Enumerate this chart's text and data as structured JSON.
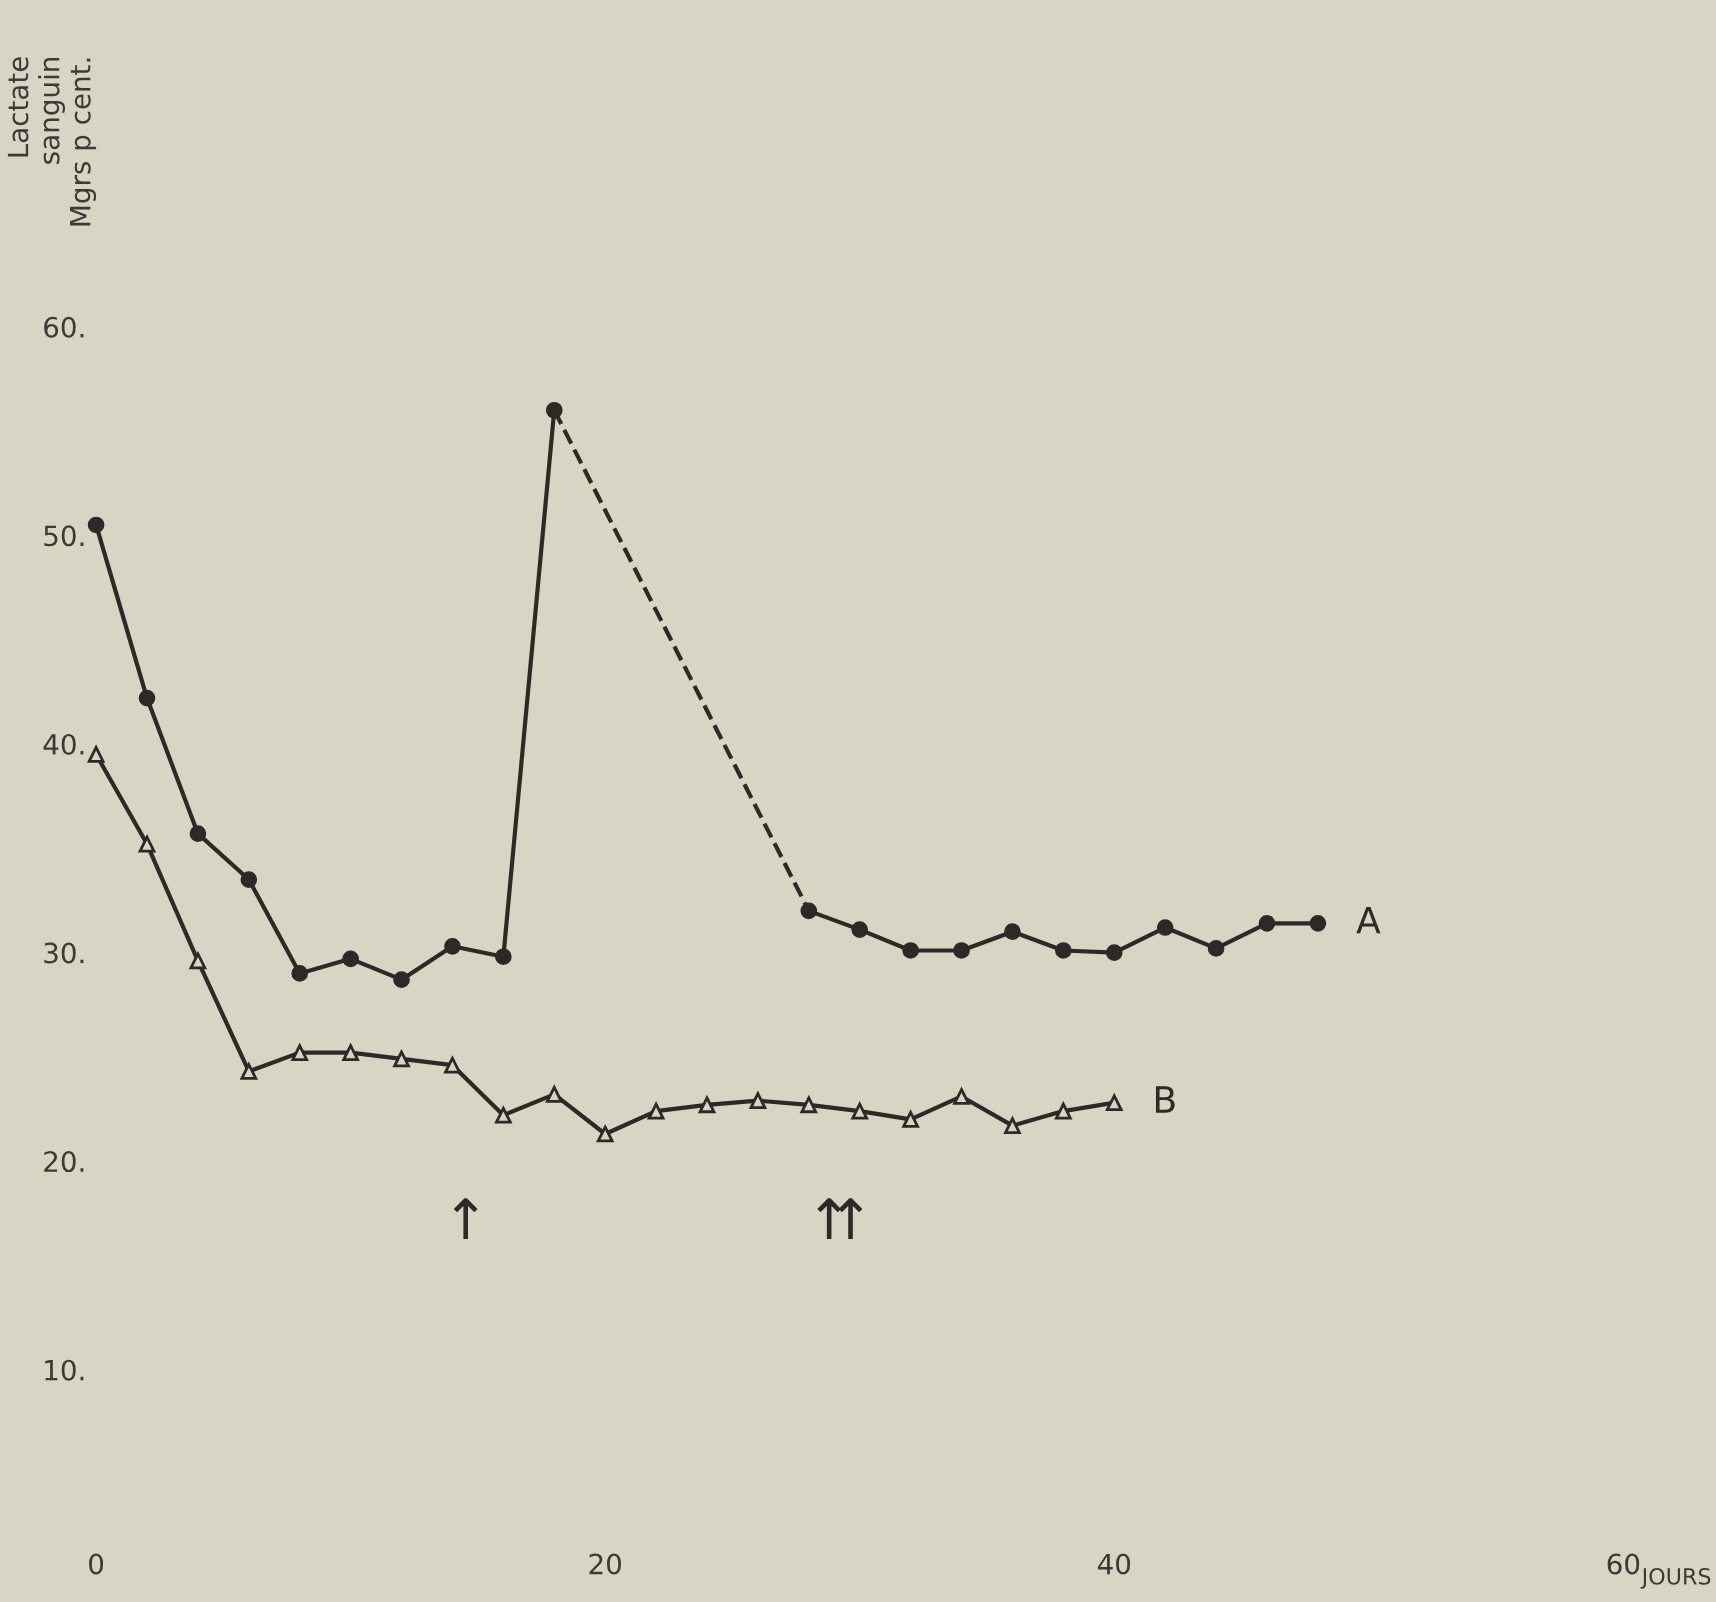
{
  "chart_data": {
    "type": "line",
    "ylabel": "Lactate\nsanguin\nMgrs p cent.",
    "xlabel": "JOURS",
    "xlim": [
      0,
      60
    ],
    "ylim": [
      10,
      60
    ],
    "xticks": [
      0,
      20,
      40,
      60
    ],
    "yticks": [
      {
        "value": 10,
        "label": "10."
      },
      {
        "value": 20,
        "label": "20."
      },
      {
        "value": 30,
        "label": "30."
      },
      {
        "value": 40,
        "label": "40."
      },
      {
        "value": 50,
        "label": "50."
      },
      {
        "value": 60,
        "label": "60."
      }
    ],
    "grid": false,
    "legend": false,
    "series": [
      {
        "color": "#2b2a26",
        "marker": "circle",
        "line_style": "solid",
        "x": [
          0,
          2,
          4,
          6,
          8,
          10,
          12,
          14,
          16,
          18
        ],
        "values": [
          50.5,
          42.2,
          35.7,
          33.5,
          29.0,
          29.7,
          28.7,
          30.3,
          29.8,
          56.0
        ]
      },
      {
        "color": "#2b2a26",
        "line_style": "dashed",
        "x": [
          18,
          28
        ],
        "values": [
          56.0,
          32.0
        ]
      },
      {
        "name": "A",
        "color": "#2b2a26",
        "marker": "circle",
        "line_style": "solid",
        "x": [
          28,
          30,
          32,
          34,
          36,
          38,
          40,
          42,
          44,
          46,
          48
        ],
        "values": [
          32.0,
          31.1,
          30.1,
          30.1,
          31.0,
          30.1,
          30.0,
          31.2,
          30.2,
          31.4,
          31.4
        ]
      },
      {
        "name": "B",
        "color": "#2b2a26",
        "marker": "triangle",
        "line_style": "solid",
        "x": [
          0,
          2,
          4,
          6,
          8,
          10,
          12,
          14,
          16,
          18,
          20,
          22,
          24,
          26,
          28,
          30,
          32,
          34,
          36,
          38,
          40
        ],
        "values": [
          39.5,
          35.2,
          29.6,
          24.3,
          25.2,
          25.2,
          24.9,
          24.6,
          22.2,
          23.2,
          21.3,
          22.4,
          22.7,
          22.9,
          22.7,
          22.4,
          22.0,
          23.1,
          21.7,
          22.4,
          22.8
        ]
      }
    ],
    "annotations": [
      "↑",
      "↑",
      "↑"
    ]
  }
}
